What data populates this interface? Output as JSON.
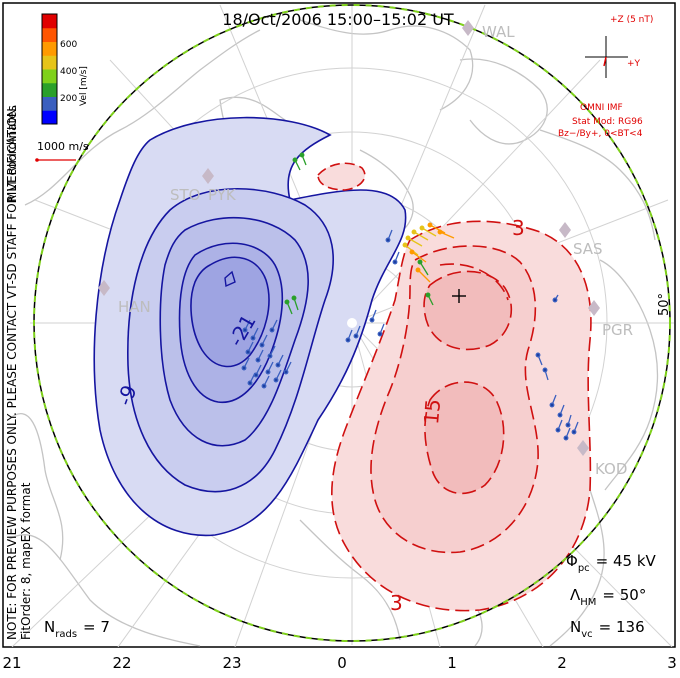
{
  "title": "18/Oct/2006 15:00–15:02 UT",
  "coordinates": "MLT coordinates",
  "velocity_scale": {
    "label": "Vel [m/s]",
    "ticks": [
      "600",
      "400",
      "200"
    ],
    "colors": [
      "#0000ff",
      "#3a5fbf",
      "#2aa02a",
      "#7fd11b",
      "#e6c419",
      "#ff9a00",
      "#ff5500",
      "#e00000"
    ]
  },
  "reference_vector": "1000 m/s",
  "imf": {
    "title": "+Z (5 nT)",
    "y_label": "+Y",
    "source": "OMNI IMF",
    "model": "Stat Mod: RG96",
    "condition": "Bz−/By+, 0<BT<4"
  },
  "side_note": "NOTE: FOR PREVIEW PURPOSES ONLY. PLEASE CONTACT VT-SD STAFF FOR VERIFICATION.",
  "fit_order": "FitOrder: 8, mapEX format",
  "stats": {
    "potential": "Φ",
    "potential_sub": "pc",
    "potential_value": "= 45 kV",
    "hm": "Λ",
    "hm_sub": "HM",
    "hm_value": "= 50°",
    "nrads": "N",
    "nrads_sub": "rads",
    "nrads_value": "= 7",
    "nvc": "N",
    "nvc_sub": "vc",
    "nvc_value": "= 136"
  },
  "latitude_label": "50°",
  "mlt_ticks": [
    "21",
    "22",
    "23",
    "0",
    "1",
    "2",
    "3"
  ],
  "radars": [
    "WAL",
    "STO",
    "PYK",
    "HAN",
    "SAS",
    "PGR",
    "KOD"
  ],
  "contour_labels": {
    "neg": [
      "-9",
      "-21"
    ],
    "pos": [
      "3",
      "15",
      "3"
    ]
  },
  "colors": {
    "neg_contour": "#1515a0",
    "pos_contour": "#d01010",
    "neg_fill": "#b9bde8",
    "pos_fill": "#f4c0c0",
    "imf_red": "#e00000"
  }
}
